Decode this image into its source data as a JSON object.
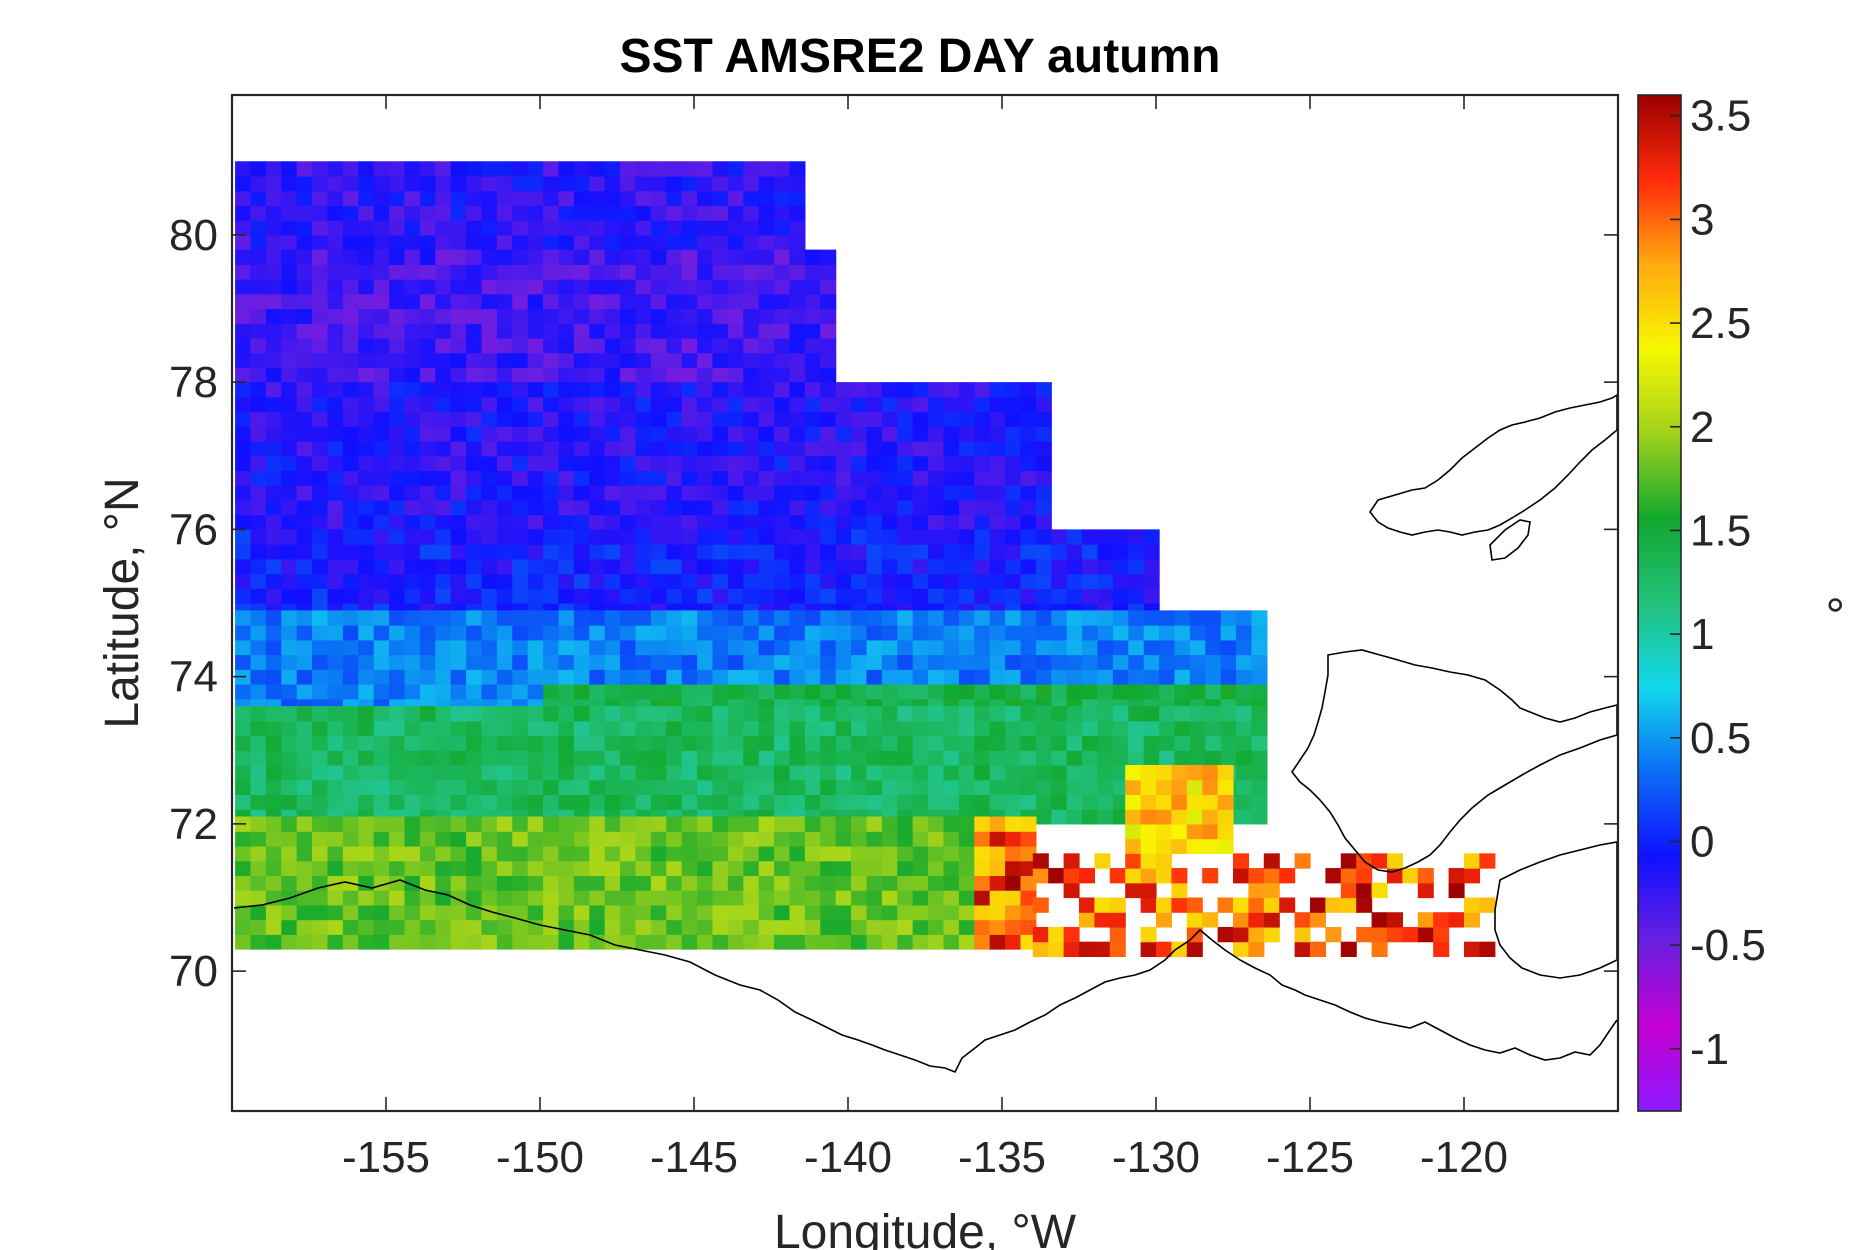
{
  "chart_data": {
    "type": "heatmap",
    "title": "SST AMSRE2 DAY autumn",
    "xlabel": "Longitude, °W",
    "ylabel": "Latitude, °N",
    "xlim": [
      -160,
      -115
    ],
    "ylim": [
      68.1,
      81.9
    ],
    "xticks": [
      -155,
      -150,
      -145,
      -140,
      -135,
      -130,
      -125,
      -120
    ],
    "yticks": [
      70,
      72,
      74,
      76,
      78,
      80
    ],
    "grid": false,
    "colorbar": {
      "label": "°",
      "range": [
        -1.3,
        3.6
      ],
      "ticks": [
        -1,
        -0.5,
        0,
        0.5,
        1,
        1.5,
        2,
        2.5,
        3,
        3.5
      ],
      "colors": [
        "#8c1aff",
        "#c400d2",
        "#6a1fe0",
        "#1010ff",
        "#0a6cf5",
        "#12d8ee",
        "#22c07a",
        "#12a82e",
        "#a0d21c",
        "#f7f700",
        "#ffaa10",
        "#ff2a0a",
        "#9a0000"
      ]
    },
    "field_approximation": {
      "lat_bands": [
        {
          "lat_min": 79.8,
          "lat_max": 81.0,
          "value": -0.2,
          "lon_min": -159.9,
          "lon_max": -141.5
        },
        {
          "lat_min": 78.0,
          "lat_max": 79.8,
          "value": -0.3,
          "lon_min": -159.9,
          "lon_max": -140.5
        },
        {
          "lat_min": 76.0,
          "lat_max": 78.0,
          "value": -0.15,
          "lon_min": -159.9,
          "lon_max": -133.5
        },
        {
          "lat_min": 74.8,
          "lat_max": 76.0,
          "value": -0.05,
          "lon_min": -159.9,
          "lon_max": -130.0
        },
        {
          "lat_min": 73.5,
          "lat_max": 74.8,
          "value": 0.4,
          "lon_min": -159.9,
          "lon_max": -126.5
        },
        {
          "lat_min": 72.0,
          "lat_max": 73.5,
          "value": 1.3,
          "lon_min": -159.9,
          "lon_max": -126.5
        },
        {
          "lat_min": 70.3,
          "lat_max": 72.0,
          "value": 1.8,
          "lon_min": -159.9,
          "lon_max": -134.0
        }
      ],
      "warm_coastal_range": [
        2.5,
        3.6
      ]
    }
  }
}
